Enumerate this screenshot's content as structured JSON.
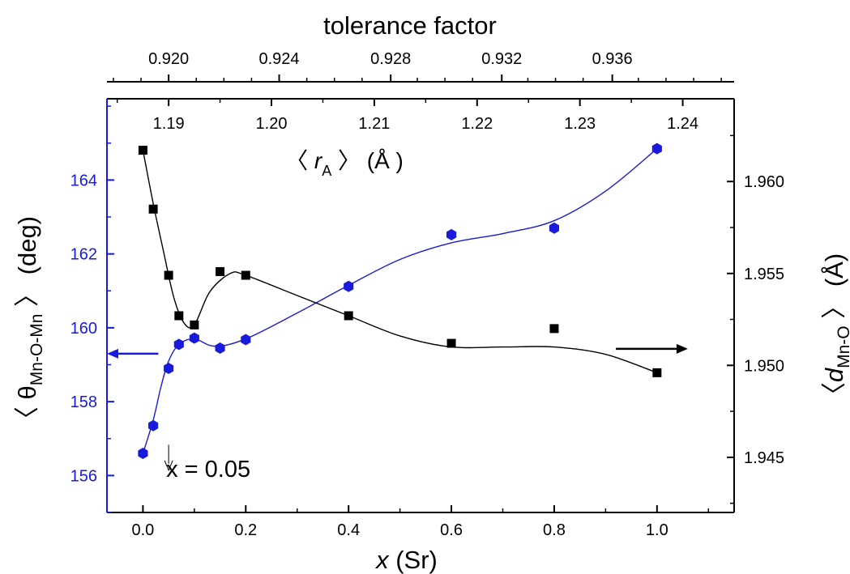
{
  "chart_data": {
    "type": "scatter",
    "axes": {
      "bottom": {
        "label_var": "x",
        "label_rest": " (Sr)",
        "range": [
          -0.07,
          1.15
        ],
        "ticks": [
          0.0,
          0.2,
          0.4,
          0.6,
          0.8,
          1.0
        ],
        "tick_labels": [
          "0.0",
          "0.2",
          "0.4",
          "0.6",
          "0.8",
          "1.0"
        ],
        "minor_step": 0.1
      },
      "top_tolerance": {
        "label": "tolerance factor",
        "ticks": [
          0.92,
          0.924,
          0.928,
          0.932,
          0.936
        ],
        "tick_labels": [
          "0.920",
          "0.924",
          "0.928",
          "0.932",
          "0.936"
        ],
        "tick_x_positions": [
          0.05,
          0.265,
          0.482,
          0.698,
          0.913
        ]
      },
      "top_rA": {
        "label_prefix": "〈 ",
        "label_var": "r",
        "label_sub": "A",
        "label_suffix": " 〉 (Å )",
        "ticks": [
          1.19,
          1.2,
          1.21,
          1.22,
          1.23,
          1.24
        ],
        "tick_labels": [
          "1.19",
          "1.20",
          "1.21",
          "1.22",
          "1.23",
          "1.24"
        ],
        "tick_x_positions": [
          0.05,
          0.25,
          0.45,
          0.65,
          0.85,
          1.05
        ]
      },
      "left": {
        "label_prefix": "〈 θ",
        "label_sub": "Mn-O-Mn",
        "label_suffix": " 〉 (deg)",
        "range": [
          155.0,
          166.2
        ],
        "ticks": [
          156,
          158,
          160,
          162,
          164
        ],
        "tick_labels": [
          "156",
          "158",
          "160",
          "162",
          "164"
        ],
        "color": "#1a1adc"
      },
      "right": {
        "label_prefix": "〈",
        "label_var": "d",
        "label_sub": "Mn-O",
        "label_suffix": " 〉 (Å)",
        "range": [
          1.942,
          1.9645
        ],
        "ticks": [
          1.945,
          1.95,
          1.955,
          1.96
        ],
        "tick_labels": [
          "1.945",
          "1.950",
          "1.955",
          "1.960"
        ],
        "color": "#000000"
      }
    },
    "series": [
      {
        "axis": "left",
        "marker": "hexagon",
        "color": "#1a1adc",
        "x": [
          0.0,
          0.02,
          0.05,
          0.07,
          0.1,
          0.15,
          0.2,
          0.4,
          0.6,
          0.8,
          1.0
        ],
        "y": [
          156.6,
          157.35,
          158.9,
          159.55,
          159.72,
          159.45,
          159.68,
          161.12,
          162.52,
          162.7,
          164.85
        ]
      },
      {
        "axis": "right",
        "marker": "square",
        "color": "#000000",
        "x": [
          0.0,
          0.02,
          0.05,
          0.07,
          0.1,
          0.15,
          0.2,
          0.4,
          0.6,
          0.8,
          1.0
        ],
        "y": [
          1.9617,
          1.9585,
          1.9549,
          1.9527,
          1.9522,
          1.9551,
          1.9549,
          1.9527,
          1.9512,
          1.952,
          1.9496
        ]
      }
    ],
    "fits": [
      {
        "series": 0,
        "color": "#1a1adc",
        "x": [
          0.0,
          0.02,
          0.035,
          0.05,
          0.07,
          0.1,
          0.14,
          0.2,
          0.3,
          0.4,
          0.5,
          0.6,
          0.7,
          0.8,
          0.9,
          1.0
        ],
        "y": [
          156.6,
          157.5,
          158.4,
          159.1,
          159.55,
          159.7,
          159.5,
          159.7,
          160.4,
          161.15,
          161.85,
          162.3,
          162.55,
          162.9,
          163.7,
          164.85
        ]
      },
      {
        "series": 1,
        "color": "#000000",
        "x": [
          0.0,
          0.02,
          0.04,
          0.06,
          0.08,
          0.1,
          0.13,
          0.17,
          0.2,
          0.3,
          0.4,
          0.5,
          0.6,
          0.7,
          0.8,
          0.9,
          1.0
        ],
        "y": [
          1.9617,
          1.9588,
          1.9562,
          1.9537,
          1.9523,
          1.9522,
          1.954,
          1.955,
          1.9549,
          1.9538,
          1.9527,
          1.9516,
          1.951,
          1.951,
          1.951,
          1.9506,
          1.9496
        ]
      }
    ],
    "annotations": [
      {
        "text": "x = 0.05",
        "at_x": 0.05,
        "at_y_left": 156.9,
        "text_x": 0.05,
        "text_y_left": 156.1
      }
    ],
    "arrows": [
      {
        "axis": "left",
        "from_x": 0.03,
        "to_x": -0.07,
        "y": 159.3,
        "color": "#1a1adc"
      },
      {
        "axis": "right",
        "from_x": 0.92,
        "to_x": 1.06,
        "y": 1.9509,
        "color": "#000000"
      }
    ]
  }
}
